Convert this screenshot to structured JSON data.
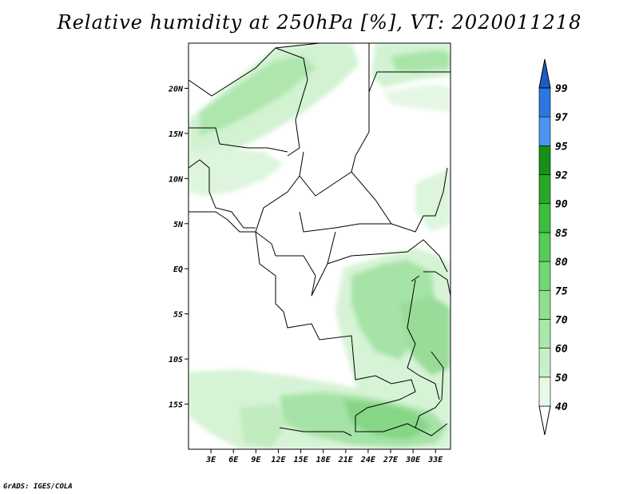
{
  "title": "Relative humidity at 250hPa [%], VT: 2020011218",
  "footer": "GrADS: IGES/COLA",
  "map": {
    "lon_range": [
      0,
      35
    ],
    "lat_range": [
      -20,
      25
    ],
    "lat_ticks": [
      {
        "lat": 20,
        "label": "20N"
      },
      {
        "lat": 15,
        "label": "15N"
      },
      {
        "lat": 10,
        "label": "10N"
      },
      {
        "lat": 5,
        "label": "5N"
      },
      {
        "lat": 0,
        "label": "EQ"
      },
      {
        "lat": -5,
        "label": "5S"
      },
      {
        "lat": -10,
        "label": "10S"
      },
      {
        "lat": -15,
        "label": "15S"
      }
    ],
    "lon_ticks": [
      {
        "lon": 3,
        "label": "3E"
      },
      {
        "lon": 6,
        "label": "6E"
      },
      {
        "lon": 9,
        "label": "9E"
      },
      {
        "lon": 12,
        "label": "12E"
      },
      {
        "lon": 15,
        "label": "15E"
      },
      {
        "lon": 18,
        "label": "18E"
      },
      {
        "lon": 21,
        "label": "21E"
      },
      {
        "lon": 24,
        "label": "24E"
      },
      {
        "lon": 27,
        "label": "27E"
      },
      {
        "lon": 30,
        "label": "30E"
      },
      {
        "lon": 33,
        "label": "33E"
      }
    ]
  },
  "colorbar": {
    "levels": [
      "40",
      "50",
      "60",
      "70",
      "75",
      "80",
      "85",
      "90",
      "92",
      "95",
      "97",
      "99"
    ],
    "colors": [
      "#e6fae6",
      "#c8f0c8",
      "#a8e8a8",
      "#8ee08e",
      "#72d672",
      "#56cc56",
      "#3cbf3c",
      "#28a828",
      "#169016",
      "#4a96ee",
      "#2a78e0",
      "#1a5cc8"
    ]
  }
}
